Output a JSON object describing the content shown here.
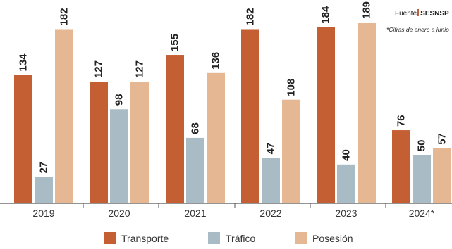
{
  "source": {
    "prefix": "Fuente",
    "org": "SESNSP"
  },
  "note": "*Cifras de enero a junio",
  "colors": {
    "transporte": "#c45e33",
    "trafico": "#a9bcc6",
    "posesion": "#e6b793"
  },
  "chart_data": {
    "type": "bar",
    "categories": [
      "2019",
      "2020",
      "2021",
      "2022",
      "2023",
      "2024*"
    ],
    "series": [
      {
        "name": "Transporte",
        "values": [
          134,
          127,
          155,
          182,
          184,
          76
        ]
      },
      {
        "name": "Tráfico",
        "values": [
          27,
          98,
          68,
          47,
          40,
          50
        ]
      },
      {
        "name": "Posesión",
        "values": [
          182,
          127,
          136,
          108,
          189,
          57
        ]
      }
    ],
    "ylim": [
      0,
      189
    ],
    "grid": false,
    "legend": "bottom"
  }
}
